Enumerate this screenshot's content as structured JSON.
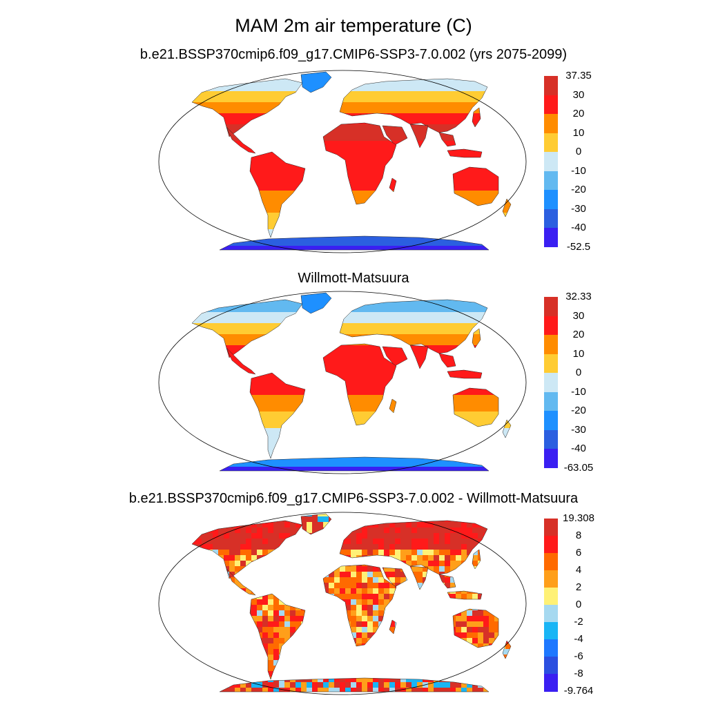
{
  "title": "MAM 2m air temperature (C)",
  "panels": [
    {
      "title": "b.e21.BSSP370cmip6.f09_g17.CMIP6-SSP3-7.0.002 (yrs 2075-2099)",
      "colorbar": {
        "labels": [
          "37.35",
          "30",
          "20",
          "10",
          "0",
          "-10",
          "-20",
          "-30",
          "-40",
          "-52.5"
        ],
        "colors": [
          "#d73027",
          "#ff1a1a",
          "#ff8c00",
          "#ffcc33",
          "#cde8f5",
          "#62b9f0",
          "#1e90ff",
          "#2b5fe0",
          "#3a1ff2"
        ]
      }
    },
    {
      "title": "Willmott-Matsuura",
      "colorbar": {
        "labels": [
          "32.33",
          "30",
          "20",
          "10",
          "0",
          "-10",
          "-20",
          "-30",
          "-40",
          "-63.05"
        ],
        "colors": [
          "#d73027",
          "#ff1a1a",
          "#ff8c00",
          "#ffcc33",
          "#cde8f5",
          "#62b9f0",
          "#1e90ff",
          "#2b5fe0",
          "#3a1ff2"
        ]
      }
    },
    {
      "title": "b.e21.BSSP370cmip6.f09_g17.CMIP6-SSP3-7.0.002 - Willmott-Matsuura",
      "colorbar": {
        "labels": [
          "19.308",
          "8",
          "6",
          "4",
          "2",
          "0",
          "-2",
          "-4",
          "-6",
          "-8",
          "-9.764"
        ],
        "colors": [
          "#d73027",
          "#ff1a1a",
          "#ff6a00",
          "#ff9f1a",
          "#fff176",
          "#a6d9f0",
          "#19b5f5",
          "#1e78ff",
          "#2b4fe0",
          "#3a1ff2"
        ]
      }
    }
  ]
}
